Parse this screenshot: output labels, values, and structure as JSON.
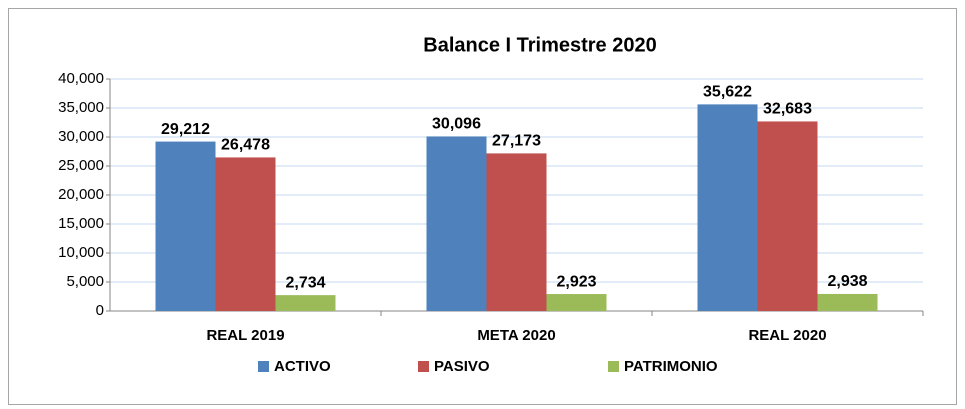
{
  "chart_data": {
    "type": "bar",
    "title": "Balance I Trimestre 2020",
    "categories": [
      "REAL 2019",
      "META 2020",
      "REAL 2020"
    ],
    "series": [
      {
        "name": "ACTIVO",
        "color": "#4f81bd",
        "values": [
          29212,
          30096,
          35622
        ],
        "value_labels": [
          "29,212",
          "30,096",
          "35,622"
        ]
      },
      {
        "name": "PASIVO",
        "color": "#c0504d",
        "values": [
          26478,
          27173,
          32683
        ],
        "value_labels": [
          "26,478",
          "27,173",
          "32,683"
        ]
      },
      {
        "name": "PATRIMONIO",
        "color": "#9bbb59",
        "values": [
          2734,
          2923,
          2938
        ],
        "value_labels": [
          "2,734",
          "2,923",
          "2,938"
        ]
      }
    ],
    "ylim": [
      0,
      40000
    ],
    "yticks": [
      0,
      {
        "value": 5000,
        "label": "5,000"
      },
      {
        "value": 10000,
        "label": "10,000"
      },
      {
        "value": 15000,
        "label": "15,000"
      },
      {
        "value": 20000,
        "label": "20,000"
      },
      {
        "value": 25000,
        "label": "25,000"
      },
      {
        "value": 30000,
        "label": "30,000"
      },
      {
        "value": 35000,
        "label": "35,000"
      },
      {
        "value": 40000,
        "label": "40,000"
      }
    ],
    "grid": true,
    "legend": "bottom"
  }
}
